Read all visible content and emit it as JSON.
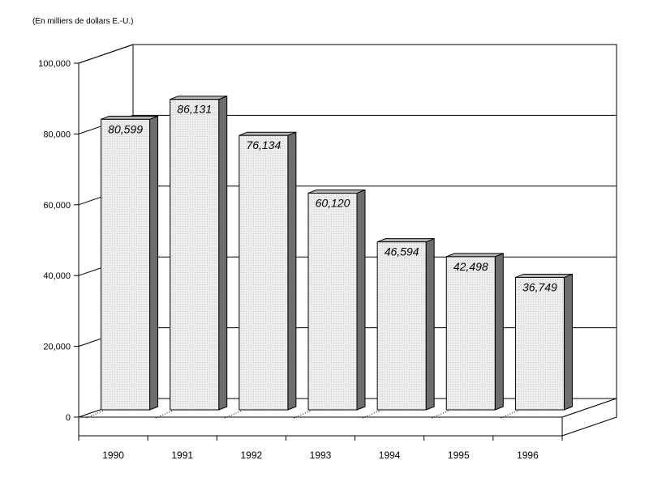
{
  "chart_data": {
    "type": "bar",
    "subtitle": "(En milliers de dollars E.-U.)",
    "categories": [
      "1990",
      "1991",
      "1992",
      "1993",
      "1994",
      "1995",
      "1996"
    ],
    "values": [
      80599,
      86131,
      76134,
      60120,
      46594,
      42498,
      36749
    ],
    "value_labels": [
      "80,599",
      "86,131",
      "76,134",
      "60,120",
      "46,594",
      "42,498",
      "36,749"
    ],
    "ylim": [
      0,
      100000
    ],
    "yticks": [
      0,
      20000,
      40000,
      60000,
      80000,
      100000
    ],
    "ytick_labels": [
      "0",
      "20,000",
      "40,000",
      "60,000",
      "80,000",
      "100,000"
    ],
    "grid": true,
    "style": "3d-bar",
    "colors": {
      "bar_front": "#ececec",
      "bar_side": "#6e6e6e",
      "bar_top": "#b4b4b4",
      "axis": "#000000"
    }
  }
}
